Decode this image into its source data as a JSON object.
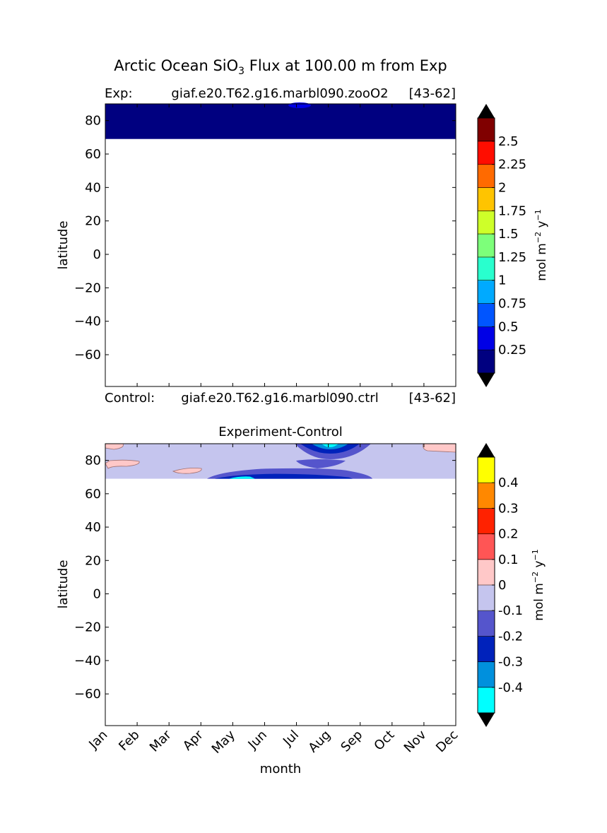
{
  "figure": {
    "title_prefix": "Arctic Ocean SiO",
    "title_sub": "3",
    "title_suffix": " Flux at 100.00 m from Exp",
    "exp_label": "Exp:",
    "exp_name": "giaf.e20.T62.g16.marbl090.zooO2",
    "exp_years": "[43-62]",
    "ctrl_label": "Control:",
    "ctrl_name": "giaf.e20.T62.g16.marbl090.ctrl",
    "ctrl_years": "[43-62]",
    "diff_title": "Experiment-Control",
    "xlabel": "month",
    "ylabel": "latitude",
    "cbar_label_main": "mol m",
    "cbar_label_sup1": "−2",
    "cbar_label_mid": " y",
    "cbar_label_sup2": "−1"
  },
  "chart_data": [
    {
      "type": "heatmap",
      "title": "Arctic Ocean SiO3 Flux at 100.00 m from Exp",
      "xlabel": "",
      "ylabel": "latitude",
      "x_ticks": [],
      "y_ticks": [
        "80",
        "60",
        "40",
        "20",
        "0",
        "−20",
        "−40",
        "−60"
      ],
      "y_tick_values": [
        80,
        60,
        40,
        20,
        0,
        -20,
        -40,
        -60
      ],
      "ylim": [
        -79,
        90
      ],
      "xlim": [
        0,
        11
      ],
      "data_lat_range": [
        69,
        90
      ],
      "colorbar": {
        "levels": [
          0,
          0.25,
          0.5,
          0.75,
          1,
          1.25,
          1.5,
          1.75,
          2,
          2.25,
          2.5,
          2.75
        ],
        "tick_labels": [
          "0.25",
          "0.5",
          "0.75",
          "1",
          "1.25",
          "1.5",
          "1.75",
          "2",
          "2.25",
          "2.5"
        ],
        "colors": [
          "#000080",
          "#0000e6",
          "#0055ff",
          "#00aaff",
          "#29ffce",
          "#7dff7a",
          "#ceff29",
          "#ffc400",
          "#ff6a00",
          "#ff0d00",
          "#800000"
        ],
        "extend_colors": [
          "#000000",
          "#000000"
        ]
      },
      "fields": [
        {
          "level": 0,
          "region": "lat 69–90, all months"
        },
        {
          "level": 1,
          "region": "Jul–Aug near 90"
        }
      ]
    },
    {
      "type": "heatmap",
      "title": "Experiment-Control",
      "xlabel": "month",
      "ylabel": "latitude",
      "x_ticks": [
        "Jan",
        "Feb",
        "Mar",
        "Apr",
        "May",
        "Jun",
        "Jul",
        "Aug",
        "Sep",
        "Oct",
        "Nov",
        "Dec"
      ],
      "y_ticks": [
        "80",
        "60",
        "40",
        "20",
        "0",
        "−20",
        "−40",
        "−60"
      ],
      "y_tick_values": [
        80,
        60,
        40,
        20,
        0,
        -20,
        -40,
        -60
      ],
      "ylim": [
        -79,
        90
      ],
      "xlim": [
        0,
        11
      ],
      "data_lat_range": [
        69,
        90
      ],
      "colorbar": {
        "levels": [
          -0.5,
          -0.4,
          -0.3,
          -0.2,
          -0.1,
          0,
          0.1,
          0.2,
          0.3,
          0.4,
          0.5
        ],
        "tick_labels": [
          "-0.4",
          "-0.3",
          "-0.2",
          "-0.1",
          "0",
          "0.1",
          "0.2",
          "0.3",
          "0.4"
        ],
        "colors": [
          "#00ffff",
          "#0090dd",
          "#0022bb",
          "#5555cc",
          "#c5c5ee",
          "#ffc8c8",
          "#ff5555",
          "#ff2200",
          "#ff8800",
          "#ffff00"
        ],
        "extend_colors": [
          "#000000",
          "#000000"
        ]
      },
      "fields": [
        {
          "band": "-0.1 to 0",
          "region": "background lat 69–90"
        },
        {
          "band": "0 to 0.1",
          "region": "small patches Jan, Mar-Apr, Dec"
        },
        {
          "band": "-0.2 to -0.1",
          "region": "May–Sep lat 69–79, Jul–Sep near 90"
        },
        {
          "band": "-0.3 to -0.2",
          "region": "Aug near 90, May–Aug near 69"
        },
        {
          "band": "-0.5 to -0.3",
          "region": "small cores Aug near 90, May near 69"
        }
      ]
    }
  ]
}
